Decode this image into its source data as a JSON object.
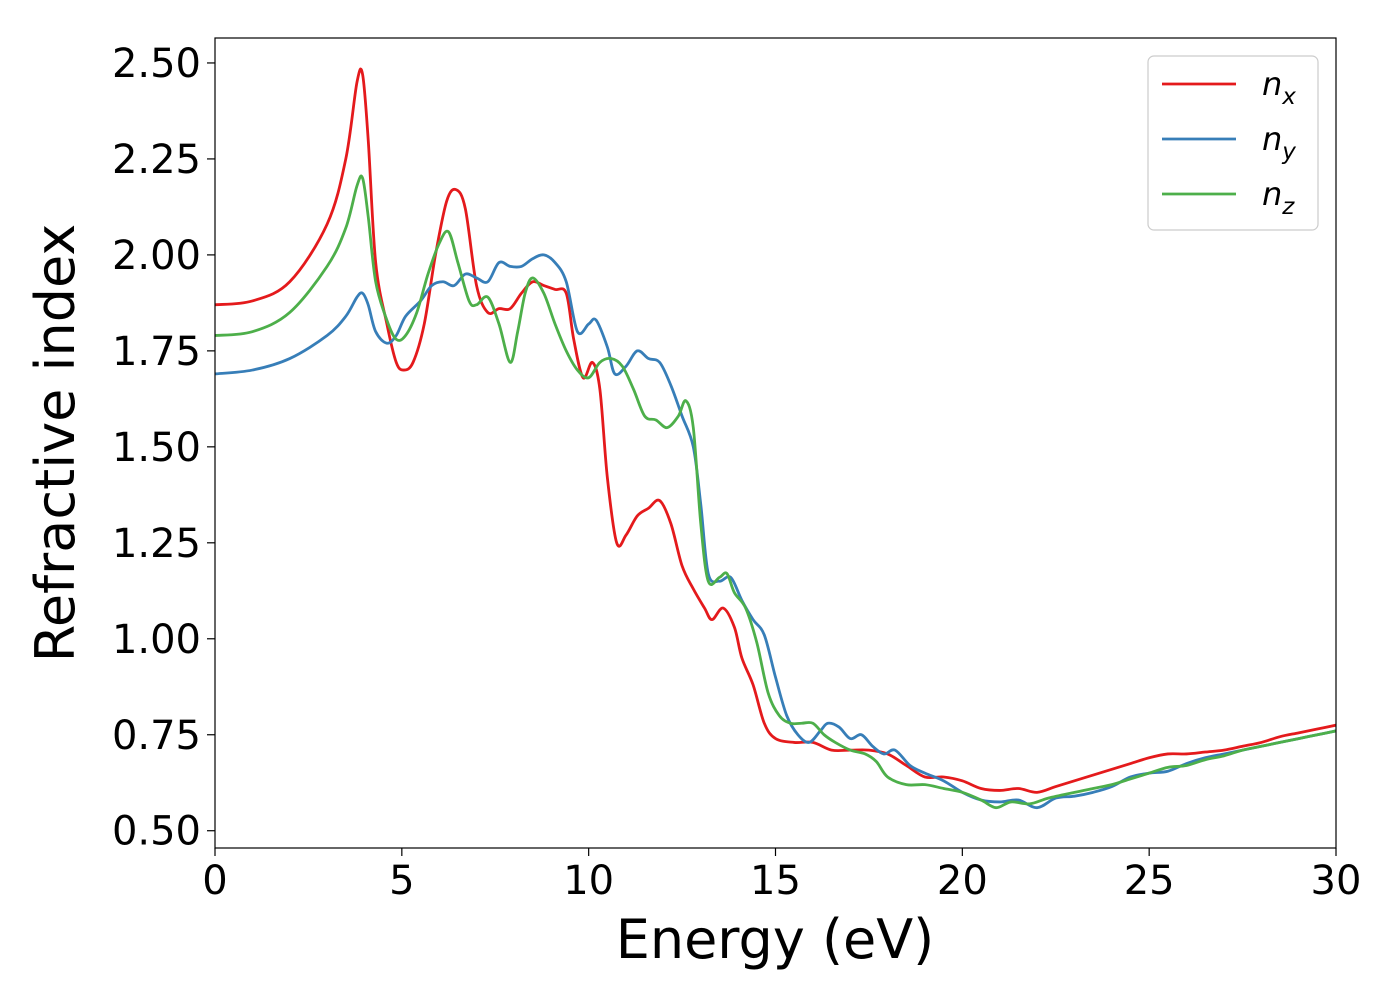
{
  "chart_data": {
    "type": "line",
    "xlabel": "Energy (eV)",
    "ylabel": "Refractive index",
    "xlim": [
      0,
      30
    ],
    "ylim": [
      0.455,
      2.565
    ],
    "xticks": [
      0,
      5,
      10,
      15,
      20,
      25,
      30
    ],
    "xtick_labels": [
      "0",
      "5",
      "10",
      "15",
      "20",
      "25",
      "30"
    ],
    "yticks": [
      0.5,
      0.75,
      1.0,
      1.25,
      1.5,
      1.75,
      2.0,
      2.25,
      2.5
    ],
    "ytick_labels": [
      "0.50",
      "0.75",
      "1.00",
      "1.25",
      "1.50",
      "1.75",
      "2.00",
      "2.25",
      "2.50"
    ],
    "grid": false,
    "legend_position": "top-right",
    "series": [
      {
        "name": "n",
        "subscript": "x",
        "color": "#e41a1c",
        "points": [
          [
            0,
            1.87
          ],
          [
            1,
            1.88
          ],
          [
            2,
            1.93
          ],
          [
            3,
            2.08
          ],
          [
            3.5,
            2.25
          ],
          [
            3.8,
            2.45
          ],
          [
            3.95,
            2.47
          ],
          [
            4.1,
            2.3
          ],
          [
            4.3,
            1.98
          ],
          [
            4.6,
            1.82
          ],
          [
            4.85,
            1.72
          ],
          [
            5.05,
            1.7
          ],
          [
            5.3,
            1.72
          ],
          [
            5.6,
            1.82
          ],
          [
            5.9,
            2.0
          ],
          [
            6.2,
            2.14
          ],
          [
            6.45,
            2.17
          ],
          [
            6.7,
            2.12
          ],
          [
            7.0,
            1.92
          ],
          [
            7.3,
            1.85
          ],
          [
            7.6,
            1.86
          ],
          [
            7.9,
            1.86
          ],
          [
            8.2,
            1.9
          ],
          [
            8.5,
            1.93
          ],
          [
            8.8,
            1.92
          ],
          [
            9.1,
            1.91
          ],
          [
            9.4,
            1.9
          ],
          [
            9.6,
            1.78
          ],
          [
            9.85,
            1.68
          ],
          [
            10.1,
            1.72
          ],
          [
            10.3,
            1.65
          ],
          [
            10.5,
            1.42
          ],
          [
            10.75,
            1.25
          ],
          [
            11.0,
            1.27
          ],
          [
            11.3,
            1.32
          ],
          [
            11.6,
            1.34
          ],
          [
            11.9,
            1.36
          ],
          [
            12.2,
            1.3
          ],
          [
            12.5,
            1.19
          ],
          [
            12.8,
            1.13
          ],
          [
            13.1,
            1.08
          ],
          [
            13.3,
            1.05
          ],
          [
            13.6,
            1.08
          ],
          [
            13.9,
            1.03
          ],
          [
            14.1,
            0.95
          ],
          [
            14.4,
            0.88
          ],
          [
            14.7,
            0.78
          ],
          [
            15.0,
            0.74
          ],
          [
            15.5,
            0.73
          ],
          [
            16.0,
            0.73
          ],
          [
            16.5,
            0.71
          ],
          [
            17.0,
            0.71
          ],
          [
            17.5,
            0.71
          ],
          [
            18.0,
            0.7
          ],
          [
            18.5,
            0.67
          ],
          [
            19.0,
            0.64
          ],
          [
            19.5,
            0.64
          ],
          [
            20.0,
            0.63
          ],
          [
            20.5,
            0.61
          ],
          [
            21.0,
            0.605
          ],
          [
            21.5,
            0.61
          ],
          [
            22.0,
            0.6
          ],
          [
            22.5,
            0.615
          ],
          [
            23.0,
            0.63
          ],
          [
            23.5,
            0.645
          ],
          [
            24.0,
            0.66
          ],
          [
            24.5,
            0.675
          ],
          [
            25.0,
            0.69
          ],
          [
            25.5,
            0.7
          ],
          [
            26.0,
            0.7
          ],
          [
            26.5,
            0.705
          ],
          [
            27.0,
            0.71
          ],
          [
            27.5,
            0.72
          ],
          [
            28.0,
            0.73
          ],
          [
            28.5,
            0.745
          ],
          [
            29.0,
            0.755
          ],
          [
            29.5,
            0.765
          ],
          [
            30.0,
            0.775
          ]
        ]
      },
      {
        "name": "n",
        "subscript": "y",
        "color": "#377eb8",
        "points": [
          [
            0,
            1.69
          ],
          [
            1,
            1.7
          ],
          [
            2,
            1.73
          ],
          [
            3,
            1.79
          ],
          [
            3.5,
            1.84
          ],
          [
            3.8,
            1.89
          ],
          [
            3.95,
            1.9
          ],
          [
            4.1,
            1.87
          ],
          [
            4.3,
            1.8
          ],
          [
            4.6,
            1.77
          ],
          [
            4.85,
            1.79
          ],
          [
            5.1,
            1.84
          ],
          [
            5.5,
            1.88
          ],
          [
            5.8,
            1.92
          ],
          [
            6.1,
            1.93
          ],
          [
            6.4,
            1.92
          ],
          [
            6.7,
            1.95
          ],
          [
            7.0,
            1.94
          ],
          [
            7.3,
            1.93
          ],
          [
            7.6,
            1.98
          ],
          [
            7.9,
            1.97
          ],
          [
            8.2,
            1.97
          ],
          [
            8.5,
            1.99
          ],
          [
            8.8,
            2.0
          ],
          [
            9.1,
            1.98
          ],
          [
            9.4,
            1.93
          ],
          [
            9.7,
            1.8
          ],
          [
            10.0,
            1.82
          ],
          [
            10.2,
            1.83
          ],
          [
            10.5,
            1.76
          ],
          [
            10.7,
            1.69
          ],
          [
            11.0,
            1.71
          ],
          [
            11.3,
            1.75
          ],
          [
            11.6,
            1.73
          ],
          [
            11.9,
            1.72
          ],
          [
            12.2,
            1.66
          ],
          [
            12.5,
            1.58
          ],
          [
            12.8,
            1.5
          ],
          [
            13.0,
            1.35
          ],
          [
            13.2,
            1.17
          ],
          [
            13.5,
            1.15
          ],
          [
            13.8,
            1.16
          ],
          [
            14.1,
            1.1
          ],
          [
            14.4,
            1.05
          ],
          [
            14.7,
            1.01
          ],
          [
            15.0,
            0.9
          ],
          [
            15.3,
            0.8
          ],
          [
            15.6,
            0.75
          ],
          [
            15.9,
            0.73
          ],
          [
            16.2,
            0.76
          ],
          [
            16.4,
            0.78
          ],
          [
            16.7,
            0.77
          ],
          [
            17.0,
            0.74
          ],
          [
            17.3,
            0.75
          ],
          [
            17.6,
            0.72
          ],
          [
            17.9,
            0.7
          ],
          [
            18.2,
            0.71
          ],
          [
            18.6,
            0.67
          ],
          [
            19.0,
            0.65
          ],
          [
            19.5,
            0.63
          ],
          [
            20.0,
            0.6
          ],
          [
            20.5,
            0.58
          ],
          [
            21.0,
            0.575
          ],
          [
            21.5,
            0.58
          ],
          [
            22.0,
            0.56
          ],
          [
            22.5,
            0.585
          ],
          [
            23.0,
            0.59
          ],
          [
            23.5,
            0.6
          ],
          [
            24.0,
            0.615
          ],
          [
            24.5,
            0.64
          ],
          [
            25.0,
            0.65
          ],
          [
            25.5,
            0.655
          ],
          [
            26.0,
            0.675
          ],
          [
            26.5,
            0.69
          ],
          [
            27.0,
            0.7
          ],
          [
            27.5,
            0.71
          ],
          [
            28.0,
            0.72
          ],
          [
            28.5,
            0.73
          ],
          [
            29.0,
            0.74
          ],
          [
            29.5,
            0.75
          ],
          [
            30.0,
            0.76
          ]
        ]
      },
      {
        "name": "n",
        "subscript": "z",
        "color": "#4daf4a",
        "points": [
          [
            0,
            1.79
          ],
          [
            1,
            1.8
          ],
          [
            2,
            1.85
          ],
          [
            3,
            1.97
          ],
          [
            3.5,
            2.07
          ],
          [
            3.8,
            2.18
          ],
          [
            3.95,
            2.2
          ],
          [
            4.1,
            2.1
          ],
          [
            4.3,
            1.93
          ],
          [
            4.6,
            1.83
          ],
          [
            4.85,
            1.78
          ],
          [
            5.1,
            1.79
          ],
          [
            5.4,
            1.85
          ],
          [
            5.7,
            1.95
          ],
          [
            6.0,
            2.03
          ],
          [
            6.25,
            2.06
          ],
          [
            6.5,
            1.98
          ],
          [
            6.8,
            1.88
          ],
          [
            7.0,
            1.87
          ],
          [
            7.3,
            1.89
          ],
          [
            7.6,
            1.82
          ],
          [
            7.9,
            1.72
          ],
          [
            8.1,
            1.8
          ],
          [
            8.3,
            1.9
          ],
          [
            8.5,
            1.94
          ],
          [
            8.8,
            1.9
          ],
          [
            9.1,
            1.82
          ],
          [
            9.4,
            1.75
          ],
          [
            9.7,
            1.7
          ],
          [
            10.0,
            1.68
          ],
          [
            10.3,
            1.72
          ],
          [
            10.6,
            1.73
          ],
          [
            10.9,
            1.71
          ],
          [
            11.2,
            1.65
          ],
          [
            11.5,
            1.58
          ],
          [
            11.8,
            1.57
          ],
          [
            12.1,
            1.55
          ],
          [
            12.4,
            1.58
          ],
          [
            12.6,
            1.62
          ],
          [
            12.8,
            1.55
          ],
          [
            13.0,
            1.3
          ],
          [
            13.2,
            1.15
          ],
          [
            13.5,
            1.16
          ],
          [
            13.7,
            1.17
          ],
          [
            13.9,
            1.12
          ],
          [
            14.2,
            1.08
          ],
          [
            14.5,
            0.99
          ],
          [
            14.8,
            0.86
          ],
          [
            15.1,
            0.8
          ],
          [
            15.4,
            0.78
          ],
          [
            15.7,
            0.78
          ],
          [
            16.0,
            0.78
          ],
          [
            16.3,
            0.75
          ],
          [
            16.6,
            0.73
          ],
          [
            17.0,
            0.71
          ],
          [
            17.4,
            0.7
          ],
          [
            17.7,
            0.68
          ],
          [
            18.0,
            0.64
          ],
          [
            18.5,
            0.62
          ],
          [
            19.0,
            0.62
          ],
          [
            19.5,
            0.61
          ],
          [
            20.0,
            0.6
          ],
          [
            20.5,
            0.58
          ],
          [
            20.9,
            0.56
          ],
          [
            21.3,
            0.575
          ],
          [
            21.8,
            0.57
          ],
          [
            22.3,
            0.585
          ],
          [
            23.0,
            0.6
          ],
          [
            23.5,
            0.61
          ],
          [
            24.0,
            0.62
          ],
          [
            24.5,
            0.635
          ],
          [
            25.0,
            0.65
          ],
          [
            25.5,
            0.665
          ],
          [
            26.0,
            0.67
          ],
          [
            26.5,
            0.685
          ],
          [
            27.0,
            0.695
          ],
          [
            27.5,
            0.71
          ],
          [
            28.0,
            0.72
          ],
          [
            28.5,
            0.73
          ],
          [
            29.0,
            0.74
          ],
          [
            29.5,
            0.75
          ],
          [
            30.0,
            0.76
          ]
        ]
      }
    ]
  }
}
